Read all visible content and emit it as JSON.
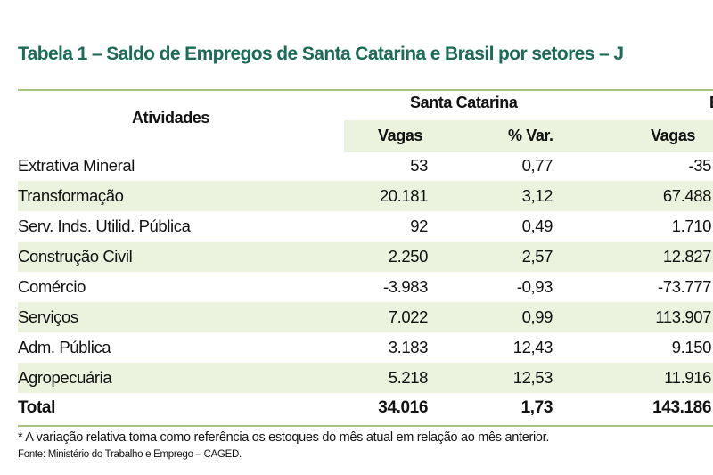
{
  "title": "Tabela 1 – Saldo de Empregos de Santa Catarina e Brasil por setores – J",
  "colors": {
    "title": "#1c6a58",
    "rule": "#a9c37c",
    "shade": "#ebf2de"
  },
  "table": {
    "row_header": "Atividades",
    "groups": [
      "Santa Catarina",
      "B"
    ],
    "columns": [
      "Vagas",
      "% Var.",
      "Vagas"
    ],
    "rows": [
      {
        "atividade": "Extrativa Mineral",
        "sc_vagas": "53",
        "sc_var": "0,77",
        "br_vagas": "-35"
      },
      {
        "atividade": "Transformação",
        "sc_vagas": "20.181",
        "sc_var": "3,12",
        "br_vagas": "67.488"
      },
      {
        "atividade": "Serv. Inds. Utilid. Pública",
        "sc_vagas": "92",
        "sc_var": "0,49",
        "br_vagas": "1.710"
      },
      {
        "atividade": "Construção Civil",
        "sc_vagas": "2.250",
        "sc_var": "2,57",
        "br_vagas": "12.827"
      },
      {
        "atividade": "Comércio",
        "sc_vagas": "-3.983",
        "sc_var": "-0,93",
        "br_vagas": "-73.777"
      },
      {
        "atividade": "Serviços",
        "sc_vagas": "7.022",
        "sc_var": "0,99",
        "br_vagas": "113.907"
      },
      {
        "atividade": "Adm. Pública",
        "sc_vagas": "3.183",
        "sc_var": "12,43",
        "br_vagas": "9.150"
      },
      {
        "atividade": "Agropecuária",
        "sc_vagas": "5.218",
        "sc_var": "12,53",
        "br_vagas": "11.916"
      }
    ],
    "total": {
      "atividade": "Total",
      "sc_vagas": "34.016",
      "sc_var": "1,73",
      "br_vagas": "143.186"
    }
  },
  "footnote": "* A variação relativa toma como referência os estoques do mês atual em relação ao mês anterior.",
  "source": "Fonte: Ministério do Trabalho e Emprego – CAGED."
}
